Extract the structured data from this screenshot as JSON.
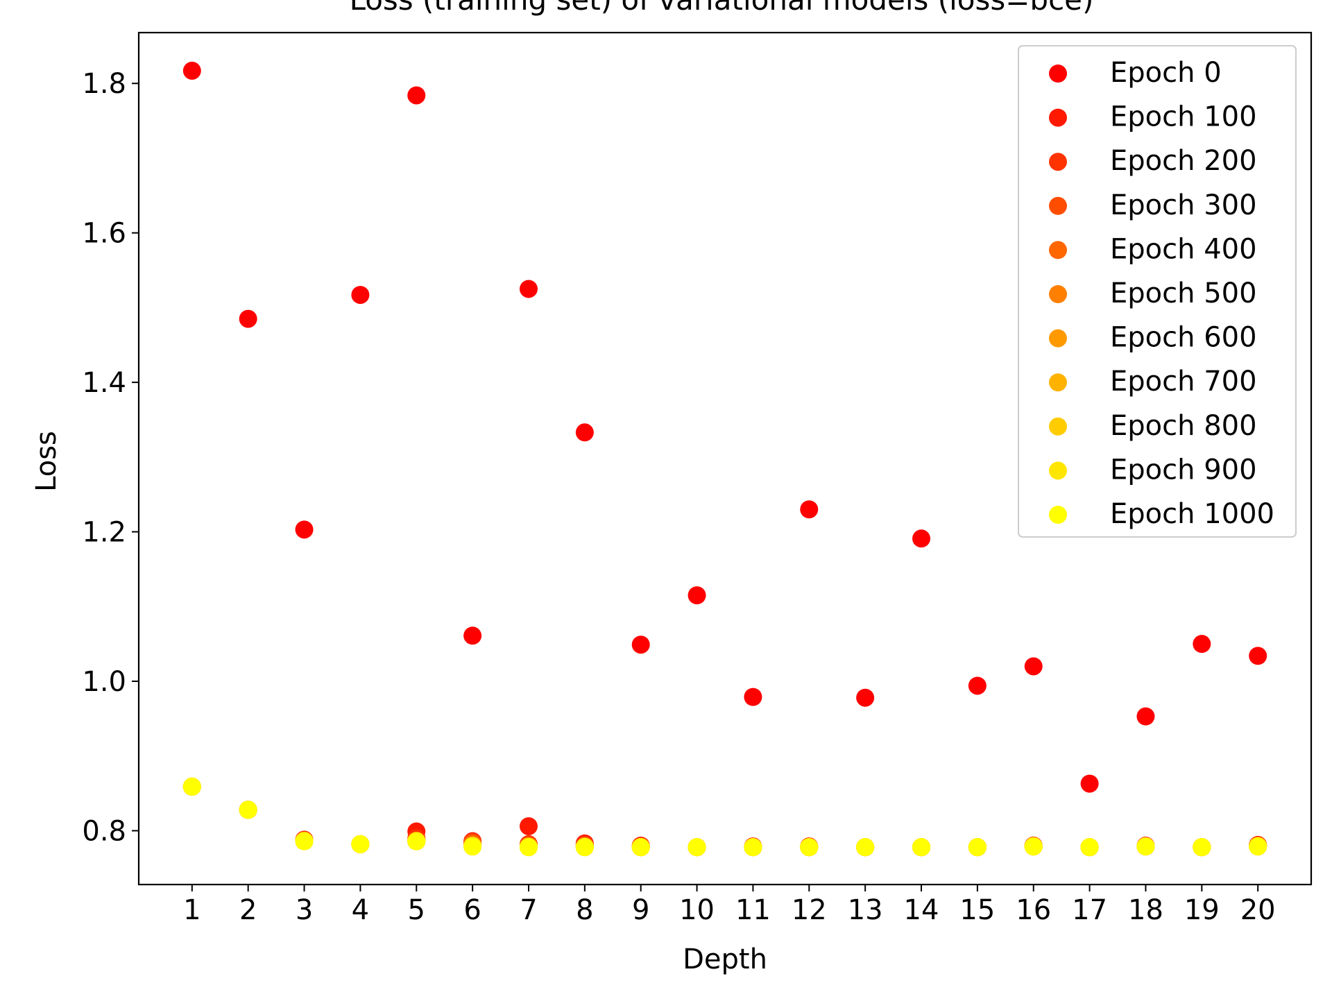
{
  "chart_data": {
    "type": "scatter",
    "title": "Loss (training set) of variational models (loss=bce)",
    "xlabel": "Depth",
    "ylabel": "Loss",
    "x": [
      1,
      2,
      3,
      4,
      5,
      6,
      7,
      8,
      9,
      10,
      11,
      12,
      13,
      14,
      15,
      16,
      17,
      18,
      19,
      20
    ],
    "xticks": [
      "1",
      "2",
      "3",
      "4",
      "5",
      "6",
      "7",
      "8",
      "9",
      "10",
      "11",
      "12",
      "13",
      "14",
      "15",
      "16",
      "17",
      "18",
      "19",
      "20"
    ],
    "yticks": [
      "0.8",
      "1.0",
      "1.2",
      "1.4",
      "1.6",
      "1.8"
    ],
    "ylim": [
      0.728,
      1.868
    ],
    "xlim": [
      0.05,
      20.95
    ],
    "grid": false,
    "legend_position": "top-right",
    "series": [
      {
        "name": "Epoch 0",
        "color": "#ff0000",
        "values": [
          1.817,
          1.485,
          1.203,
          1.517,
          1.784,
          1.061,
          1.525,
          1.333,
          1.049,
          1.115,
          0.979,
          1.23,
          0.978,
          1.191,
          0.994,
          1.02,
          0.863,
          0.953,
          1.05,
          1.034
        ]
      },
      {
        "name": "Epoch 100",
        "color": "#ff1900",
        "values": [
          0.859,
          0.828,
          0.788,
          0.782,
          0.799,
          0.786,
          0.806,
          0.783,
          0.78,
          0.778,
          0.779,
          0.779,
          0.778,
          0.778,
          0.778,
          0.78,
          0.778,
          0.78,
          0.778,
          0.781
        ]
      },
      {
        "name": "Epoch 200",
        "color": "#ff3300",
        "values": [
          0.859,
          0.828,
          0.787,
          0.782,
          0.79,
          0.785,
          0.782,
          0.781,
          0.779,
          0.778,
          0.778,
          0.778,
          0.778,
          0.778,
          0.778,
          0.78,
          0.778,
          0.779,
          0.778,
          0.78
        ]
      },
      {
        "name": "Epoch 300",
        "color": "#ff4d00",
        "values": [
          0.859,
          0.828,
          0.787,
          0.782,
          0.787,
          0.784,
          0.78,
          0.78,
          0.778,
          0.778,
          0.778,
          0.778,
          0.778,
          0.778,
          0.778,
          0.78,
          0.778,
          0.779,
          0.778,
          0.78
        ]
      },
      {
        "name": "Epoch 400",
        "color": "#ff6600",
        "values": [
          0.859,
          0.828,
          0.787,
          0.782,
          0.786,
          0.782,
          0.779,
          0.779,
          0.778,
          0.778,
          0.778,
          0.778,
          0.778,
          0.778,
          0.778,
          0.779,
          0.778,
          0.779,
          0.778,
          0.78
        ]
      },
      {
        "name": "Epoch 500",
        "color": "#ff8000",
        "values": [
          0.859,
          0.828,
          0.787,
          0.782,
          0.786,
          0.781,
          0.779,
          0.779,
          0.778,
          0.778,
          0.778,
          0.778,
          0.778,
          0.778,
          0.778,
          0.779,
          0.778,
          0.779,
          0.778,
          0.78
        ]
      },
      {
        "name": "Epoch 600",
        "color": "#ff9900",
        "values": [
          0.859,
          0.828,
          0.786,
          0.782,
          0.786,
          0.78,
          0.779,
          0.779,
          0.778,
          0.778,
          0.778,
          0.778,
          0.778,
          0.778,
          0.778,
          0.779,
          0.778,
          0.779,
          0.778,
          0.779
        ]
      },
      {
        "name": "Epoch 700",
        "color": "#ffb300",
        "values": [
          0.859,
          0.828,
          0.786,
          0.782,
          0.786,
          0.78,
          0.778,
          0.778,
          0.778,
          0.778,
          0.778,
          0.778,
          0.778,
          0.778,
          0.778,
          0.779,
          0.778,
          0.779,
          0.778,
          0.779
        ]
      },
      {
        "name": "Epoch 800",
        "color": "#ffcc00",
        "values": [
          0.859,
          0.828,
          0.786,
          0.782,
          0.786,
          0.779,
          0.778,
          0.778,
          0.778,
          0.778,
          0.778,
          0.778,
          0.778,
          0.778,
          0.778,
          0.779,
          0.778,
          0.779,
          0.778,
          0.779
        ]
      },
      {
        "name": "Epoch 900",
        "color": "#ffe600",
        "values": [
          0.859,
          0.828,
          0.786,
          0.782,
          0.786,
          0.779,
          0.778,
          0.778,
          0.778,
          0.778,
          0.778,
          0.778,
          0.778,
          0.778,
          0.778,
          0.779,
          0.778,
          0.779,
          0.778,
          0.779
        ]
      },
      {
        "name": "Epoch 1000",
        "color": "#ffff00",
        "values": [
          0.859,
          0.828,
          0.786,
          0.782,
          0.786,
          0.779,
          0.778,
          0.778,
          0.778,
          0.778,
          0.778,
          0.778,
          0.778,
          0.778,
          0.778,
          0.779,
          0.778,
          0.779,
          0.778,
          0.779
        ]
      }
    ]
  }
}
